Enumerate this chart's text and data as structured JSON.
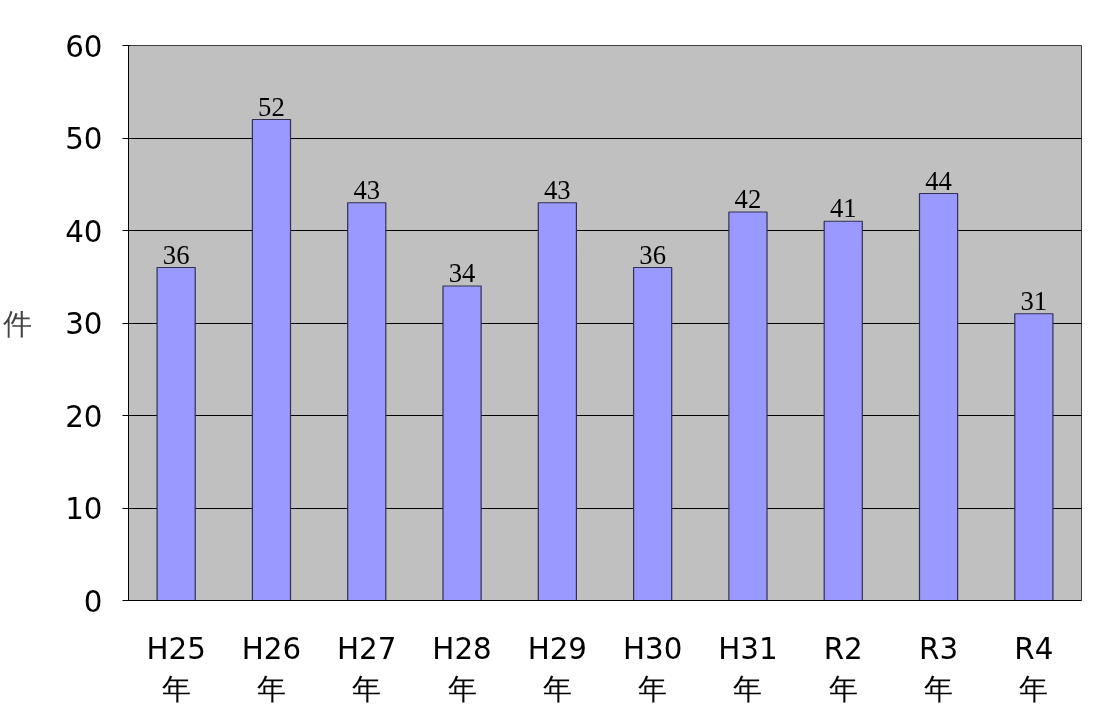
{
  "chart_data": {
    "type": "bar",
    "ylabel": "件",
    "categories": [
      "H25\n年",
      "H26\n年",
      "H27\n年",
      "H28\n年",
      "H29\n年",
      "H30\n年",
      "H31\n年",
      "R2\n年",
      "R3\n年",
      "R4\n年"
    ],
    "values": [
      36,
      52,
      43,
      34,
      43,
      36,
      42,
      41,
      44,
      31
    ],
    "color": "#9999ff",
    "ylim": [
      0,
      60
    ],
    "yticks": [
      0,
      10,
      20,
      30,
      40,
      50,
      60
    ],
    "grid": "y",
    "data_labels": true
  }
}
